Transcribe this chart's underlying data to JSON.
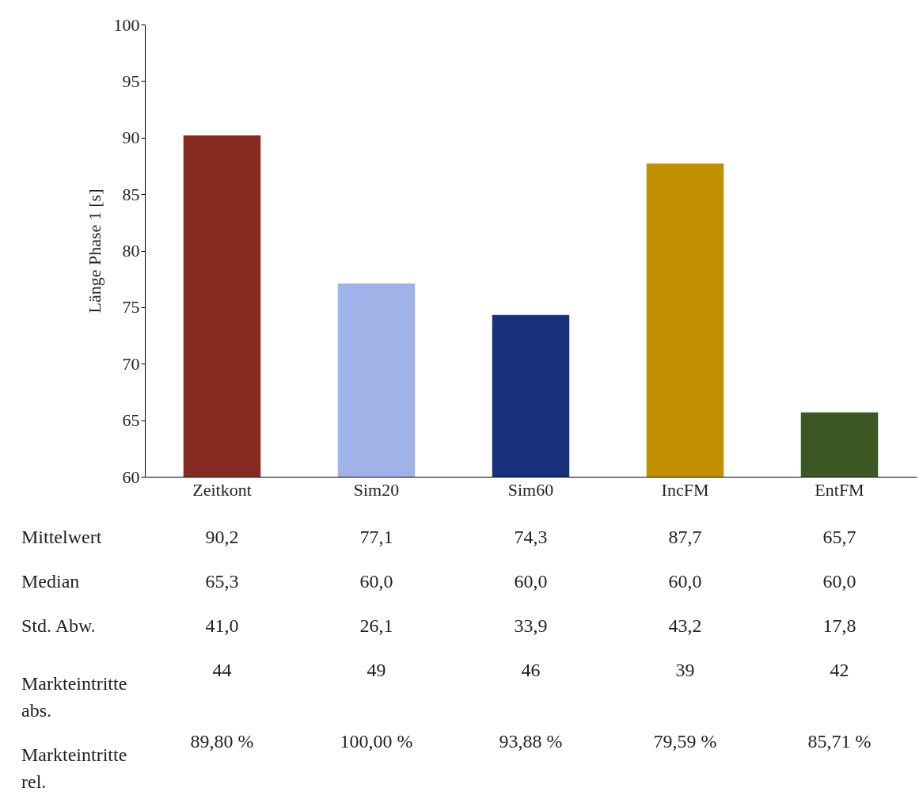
{
  "chart_data": {
    "type": "bar",
    "ylabel": "Länge Phase 1 [s]",
    "categories": [
      "Zeitkont",
      "Sim20",
      "Sim60",
      "IncFM",
      "EntFM"
    ],
    "values": [
      90.2,
      77.1,
      74.3,
      87.7,
      65.7
    ],
    "colors": [
      "#862a22",
      "#a0b3e8",
      "#18317d",
      "#c09000",
      "#3b5722"
    ],
    "value_labels": [
      "90,2",
      "77,1",
      "74,3",
      "87,7",
      "65,7"
    ],
    "ylim": [
      60,
      100
    ],
    "yticks": [
      60,
      65,
      70,
      75,
      80,
      85,
      90,
      95,
      100
    ],
    "grid": false,
    "legend": false,
    "annotations": [
      "Mittelwert",
      "Median",
      "65,3",
      "60,0",
      "60,0",
      "60,0",
      "60,0",
      "Std. Abw.",
      "41,0",
      "26,1",
      "33,9",
      "43,2",
      "17,8",
      "Markteintritte abs.",
      "44",
      "49",
      "46",
      "39",
      "42",
      "Markteintritte rel.",
      "89,80 %",
      "100,00 %",
      "93,88 %",
      "79,59 %",
      "85,71 %"
    ]
  }
}
